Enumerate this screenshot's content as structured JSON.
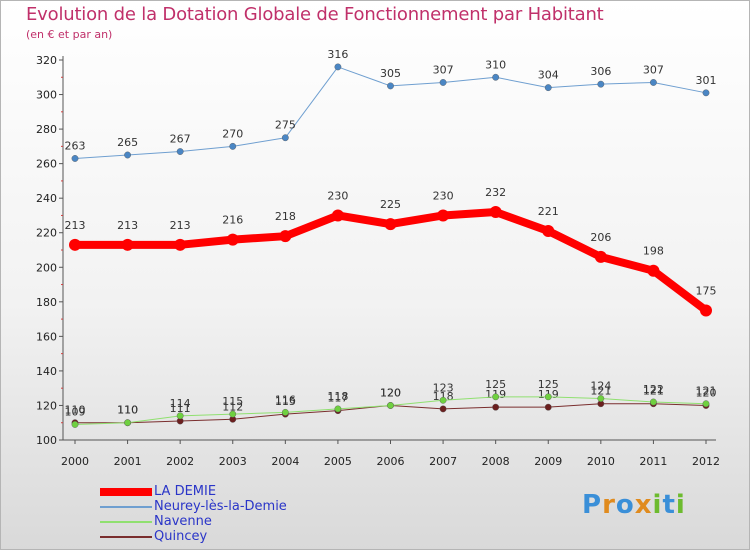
{
  "title": "Evolution de la Dotation Globale de Fonctionnement par Habitant",
  "subtitle": "(en € et par an)",
  "logo": {
    "text": "Proxiti",
    "colors": [
      "#3a8fd8",
      "#e08b1e",
      "#3a8fd8",
      "#e08b1e",
      "#6dbb2f",
      "#3a8fd8",
      "#6dbb2f"
    ]
  },
  "chart_data": {
    "type": "line",
    "title": "Evolution de la Dotation Globale de Fonctionnement par Habitant",
    "subtitle": "(en € et par an)",
    "xlabel": "",
    "ylabel": "",
    "x": [
      "2000",
      "2001",
      "2002",
      "2003",
      "2004",
      "2005",
      "2006",
      "2007",
      "2008",
      "2009",
      "2010",
      "2011",
      "2012"
    ],
    "ylim": [
      100,
      320
    ],
    "yticks": [
      100,
      120,
      140,
      160,
      180,
      200,
      220,
      240,
      260,
      280,
      300,
      320
    ],
    "grid": false,
    "legend_position": "bottom-left",
    "series": [
      {
        "name": "LA DEMIE",
        "color": "#ff0000",
        "width": 8,
        "values": [
          213,
          213,
          213,
          216,
          218,
          230,
          225,
          230,
          232,
          221,
          206,
          198,
          175
        ],
        "labels": [
          "213",
          "213",
          "213",
          "216",
          "218",
          "230",
          "225",
          "230",
          "232",
          "221",
          "206",
          "198",
          "175"
        ]
      },
      {
        "name": "Neurey-lès-la-Demie",
        "color": "#6f9fd0",
        "width": 1,
        "values": [
          263,
          265,
          267,
          270,
          275,
          316,
          305,
          307,
          310,
          304,
          306,
          307,
          301
        ],
        "labels": [
          "263",
          "265",
          "267",
          "270",
          "275",
          "316",
          "305",
          "307",
          "310",
          "304",
          "306",
          "307",
          "301"
        ]
      },
      {
        "name": "Navenne",
        "color": "#90e070",
        "width": 1,
        "values": [
          109,
          110,
          114,
          115,
          116,
          118,
          120,
          123,
          125,
          125,
          124,
          122,
          121
        ],
        "labels": [
          "109",
          "110",
          "114",
          "115",
          "116",
          "118",
          "120",
          "123",
          "125",
          "125",
          "124",
          "122",
          "121"
        ]
      },
      {
        "name": "Quincey",
        "color": "#7a2e2e",
        "width": 1,
        "values": [
          110,
          110,
          111,
          112,
          115,
          117,
          120,
          118,
          119,
          119,
          121,
          121,
          120
        ],
        "labels": [
          "110",
          "110",
          "111",
          "112",
          "115",
          "117",
          "120",
          "118",
          "119",
          "119",
          "121",
          "121",
          "120"
        ]
      }
    ]
  }
}
